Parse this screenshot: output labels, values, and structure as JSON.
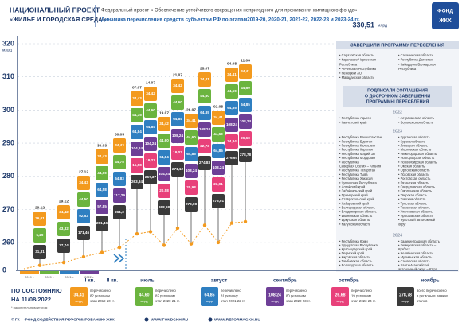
{
  "header": {
    "project": "НАЦИОНАЛЬНЫЙ ПРОЕКТ",
    "project_name": "«ЖИЛЬЕ И ГОРОДСКАЯ СРЕДА»",
    "federal_project": "Федеральный проект « Обеспечение устойчивого сокращения непригодного для проживания жилищного фонда»",
    "subtitle": "Динамика перечисления средств субъектам РФ по этапам2019-20, 2020-21, 2021-22, 2022-23 и 2023-24 гг.",
    "total": "330,51",
    "total_unit": "млрд",
    "logo": [
      "ФОНД",
      "ЖКХ"
    ]
  },
  "axis": {
    "y_labels": [
      "320",
      "310",
      "300",
      "290",
      "280",
      "270",
      "260",
      "0"
    ],
    "y_unit": "млрд",
    "x_labels": [
      "I кв.",
      "II кв.",
      "июль",
      "август",
      "сентябрь",
      "октябрь",
      "ноябрь"
    ],
    "years": [
      "2019 г.",
      "2020 г.",
      "2021 г.",
      "2022 г."
    ]
  },
  "columns": [
    {
      "date": "29.12",
      "segments": [
        "26,01",
        "5,29"
      ],
      "total": "31,31"
    },
    {
      "date": "29.12",
      "segments": [
        "34,42",
        "43,32"
      ],
      "total": "77,74"
    },
    {
      "date": "27.12",
      "segments": [
        "34,43",
        "44,50",
        "92,53"
      ],
      "total": "171,46"
    },
    {
      "date": "30.03",
      "segments": [
        "34,43",
        "44,60",
        "64,58",
        "57,85"
      ],
      "total": "201,46"
    },
    {
      "date": "30.05",
      "segments": [
        "34,43",
        "44,75",
        "64,83",
        "117,29"
      ],
      "total": "261,3"
    },
    {
      "date": "07.07",
      "segments": [
        "34,43",
        "44,75",
        "64,84",
        "104,24",
        "15,58"
      ],
      "total": "263,84"
    },
    {
      "date": "14.07",
      "segments": [
        "34,42",
        "44,60",
        "64,84",
        "104,24",
        "19,27"
      ],
      "total": "267,37"
    },
    {
      "date": "19.07",
      "segments": [
        "34,42",
        "44,60",
        "64,84",
        "104,24",
        "20,58"
      ],
      "total": "268,68"
    },
    {
      "date": "21.07",
      "segments": [
        "34,42",
        "44,60",
        "64,84",
        "108,24",
        "19,02"
      ],
      "total": "271,12"
    },
    {
      "date": "26.07",
      "segments": [
        "34,41",
        "44,60",
        "64,85",
        "108,24",
        "20,98"
      ],
      "total": "273,08"
    },
    {
      "date": "28.07",
      "segments": [
        "34,41",
        "44,60",
        "64,85",
        "108,24",
        "22,73"
      ],
      "total": "274,83"
    },
    {
      "date": "02.08",
      "segments": [
        "34,41",
        "44,60",
        "64,85",
        "108,24",
        "23,91"
      ],
      "total": "276,01"
    },
    {
      "date": "04.08",
      "segments": [
        "34,41",
        "44,60",
        "64,85",
        "108,24",
        "24,84"
      ],
      "total": "276,94"
    },
    {
      "date": "11.08",
      "segments": [
        "34,41",
        "44,60",
        "64,85",
        "108,24",
        "26,68"
      ],
      "total": "278,78"
    }
  ],
  "legend": {
    "as_of": [
      "ПО СОСТОЯНИЮ",
      "НА 11/08/2022"
    ],
    "note": "* накопительным итогом",
    "items": [
      {
        "value": "34,41",
        "unit": "млрд",
        "text": [
          "перечислено",
          "82 регионам",
          "этап 2019-20 гг."
        ],
        "color": "#f39a1e"
      },
      {
        "value": "44,60",
        "unit": "млрд",
        "text": [
          "перечислено",
          "82 регионам",
          "этап 2020-21 гг."
        ],
        "color": "#6bb43f"
      },
      {
        "value": "64,85",
        "unit": "млрд",
        "text": [
          "перечислено",
          "81 региону",
          "этап 2021-22 гг."
        ],
        "color": "#2f7fc1"
      },
      {
        "value": "108,24",
        "unit": "млрд",
        "text": [
          "перечислено",
          "80 регионам",
          "этап 2022-23 гг."
        ],
        "color": "#6e3f97"
      },
      {
        "value": "26,68",
        "unit": "млрд",
        "text": [
          "перечислено",
          "19 регионам",
          "этап 2023-24 гг."
        ],
        "color": "#e8417a"
      },
      {
        "value": "278,78",
        "unit": "млрд",
        "text": [
          "всего перечислено",
          "в регионы в рамках",
          "этапов"
        ],
        "color": "#3a3a3a"
      }
    ]
  },
  "panel": {
    "completed": {
      "title": "ЗАВЕРШИЛИ ПРОГРАММУ ПЕРЕСЕЛЕНИЯ",
      "left": [
        "• Саратовская область",
        "• Карачаево-Черкесская",
        "  Республика",
        "• Чеченская Республика",
        "• Ненецкий АО",
        "• Магаданская область"
      ],
      "right": [
        "• Сахалинская область",
        "• Республика Дагестан",
        "• Кабардино-Балкарская",
        "  Республика"
      ]
    },
    "signed": {
      "title": [
        "ПОДПИСАЛИ СОГЛАШЕНИЯ",
        "О ДОСРОЧНОМ ЗАВЕРШЕНИИ",
        "ПРОГРАММЫ ПЕРЕСЕЛЕНИЯ"
      ],
      "groups": [
        {
          "year": "2022",
          "left": [
            "• Республика Адыгея",
            "• Камчатский край"
          ],
          "right": [
            "• Астраханская область",
            "• Воронежская область"
          ]
        },
        {
          "year": "2023",
          "left": [
            "• Республика Башкортостан",
            "• Республика Бурятия",
            "• Республика Калмыкия",
            "• Республика Карелия",
            "• Республика Марий Эл",
            "• Республика Мордовия",
            "• Республика",
            "  Северная Осетия – Алания",
            "• Республика Татарстан",
            "• Республика Тыва",
            "• Республика Хакасия",
            "• Чувашская Республика",
            "• Алтайский край",
            "• Забайкальский край",
            "• Приморский край",
            "• Ставропольский край",
            "• Хабаровский край",
            "• Белгородская область",
            "• Владимирская область",
            "• Ивановская область",
            "• Иркутская область",
            "• Калужская область"
          ],
          "right": [
            "• Курганская область",
            "• Курская область",
            "• Липецкая область",
            "• Московская область",
            "• Нижегородская область",
            "• Новгородская область",
            "• Новосибирская область",
            "• Омская область",
            "• Орловская область",
            "• Псковская область",
            "• Ростовская область",
            "• Рязанская область",
            "• Свердловская область",
            "• Смоленская область",
            "• Тверская область",
            "• Томская область",
            "• Тульская область",
            "• Тюменская область",
            "• Ульяновская область",
            "• Ярославская область",
            "• Чукотский автономный",
            "  округ"
          ]
        },
        {
          "year": "2024",
          "left": [
            "• Республика Коми",
            "• Удмуртская Республика",
            "• Краснодарский край",
            "• Пермский край",
            "• Кировская область",
            "• Тамбовская область",
            "• Вологодская область"
          ],
          "right": [
            "• Калининградская область",
            "• Кемеровская область –",
            "  Кузбасс",
            "• Челябинская область",
            "• Мурманская область",
            "• Самарская область",
            "• Ханты-Мансийский",
            "  автономный округ – Югра"
          ]
        }
      ]
    }
  },
  "footer": {
    "copyright": "© ГК— ФОНД СОДЕЙСТВИЯ РЕФОРМИРОВАНИЮ ЖКХ",
    "site1": "WWW.FONDGKH.RU",
    "site2": "WWW.REFORMAGKH.RU"
  }
}
